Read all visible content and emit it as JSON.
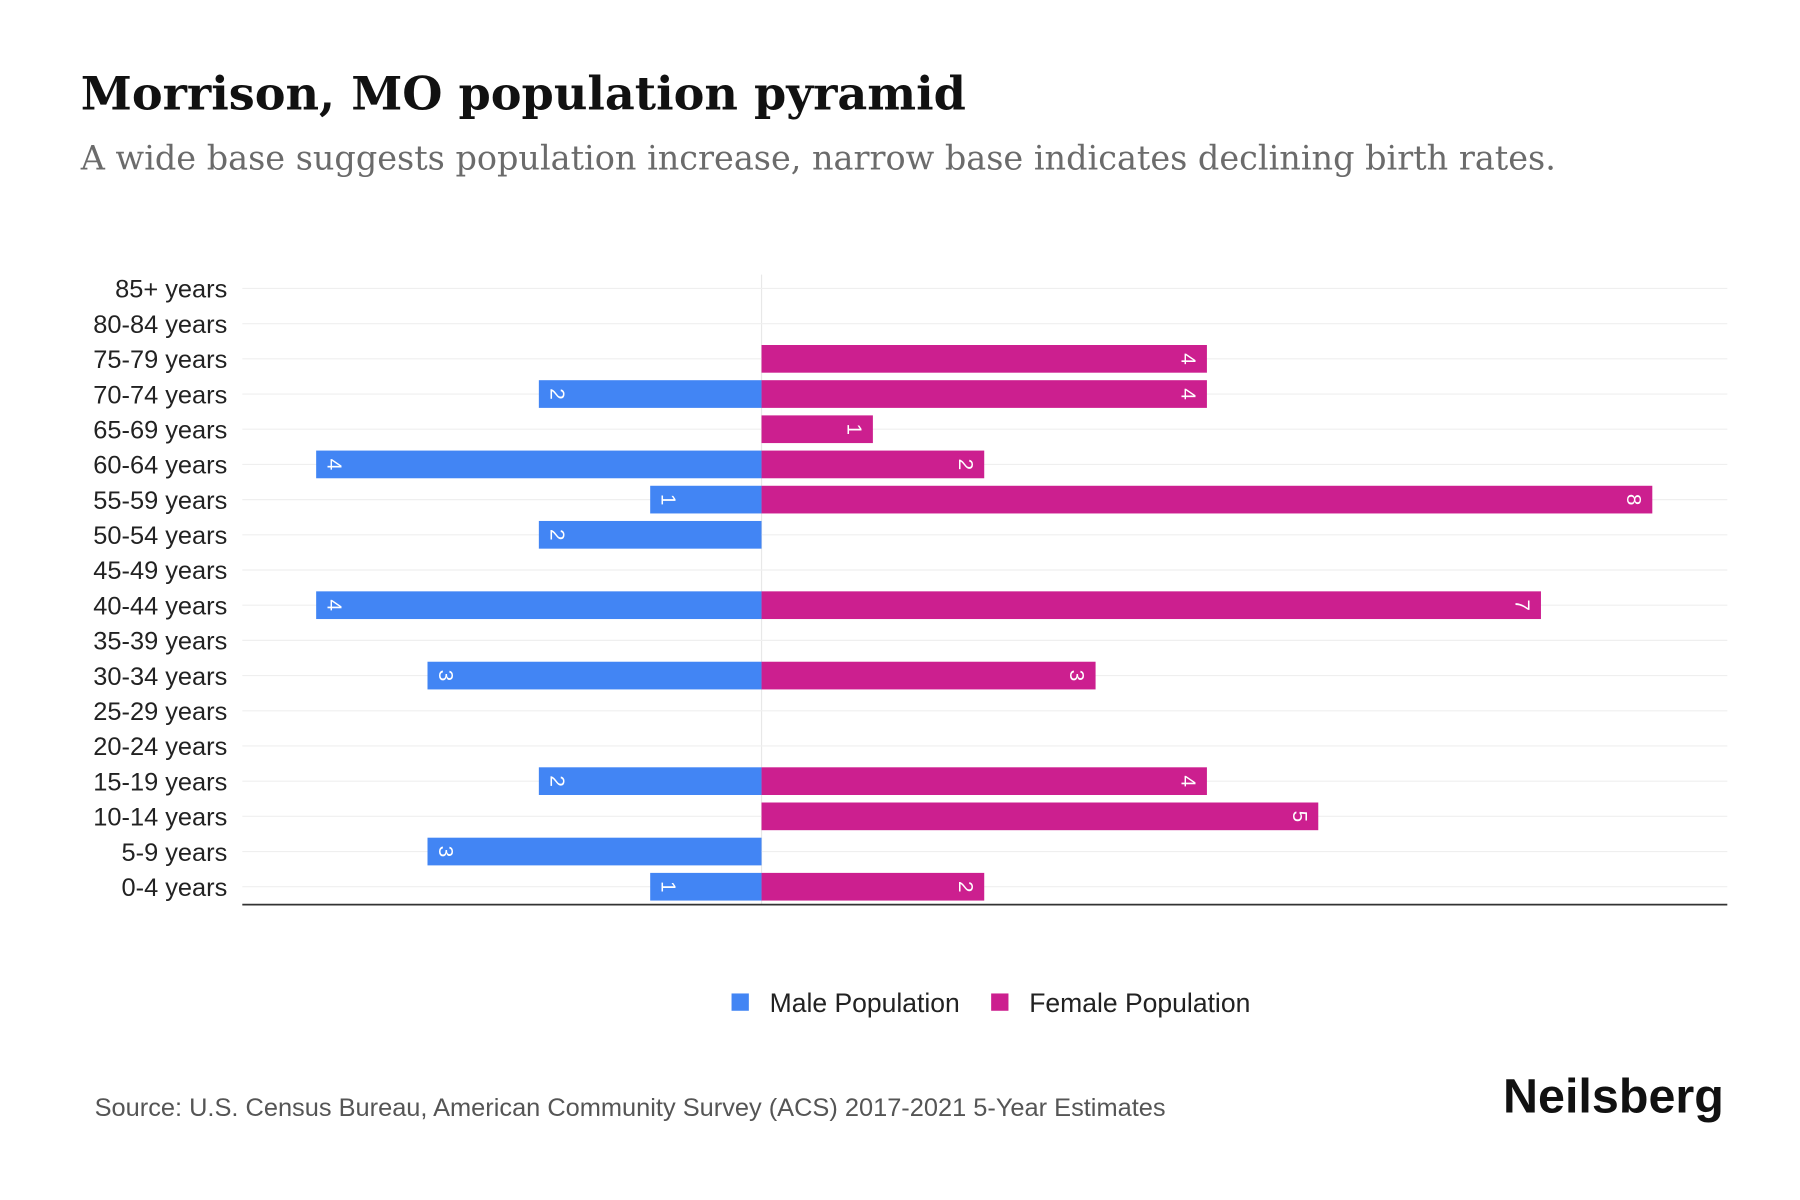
{
  "chart_data": {
    "type": "bar",
    "orientation": "horizontal-pyramid",
    "title": "Morrison, MO population pyramid",
    "subtitle": "A wide base suggests population increase, narrow base indicates declining birth rates.",
    "categories": [
      "85+ years",
      "80-84 years",
      "75-79 years",
      "70-74 years",
      "65-69 years",
      "60-64 years",
      "55-59 years",
      "50-54 years",
      "45-49 years",
      "40-44 years",
      "35-39 years",
      "30-34 years",
      "25-29 years",
      "20-24 years",
      "15-19 years",
      "10-14 years",
      "5-9 years",
      "0-4 years"
    ],
    "series": [
      {
        "name": "Male Population",
        "color": "#4285f4",
        "values": [
          0,
          0,
          0,
          2,
          0,
          4,
          1,
          2,
          0,
          4,
          0,
          3,
          0,
          0,
          2,
          0,
          3,
          1
        ]
      },
      {
        "name": "Female Population",
        "color": "#cc1f8f",
        "values": [
          0,
          0,
          4,
          4,
          1,
          2,
          8,
          0,
          0,
          7,
          0,
          3,
          0,
          0,
          4,
          5,
          0,
          2
        ]
      }
    ],
    "xlim": [
      -4.67,
      8.67
    ],
    "grid": true,
    "legend_position": "bottom"
  },
  "source": "Source: U.S. Census Bureau, American Community Survey (ACS) 2017-2021 5-Year Estimates",
  "brand": "Neilsberg"
}
